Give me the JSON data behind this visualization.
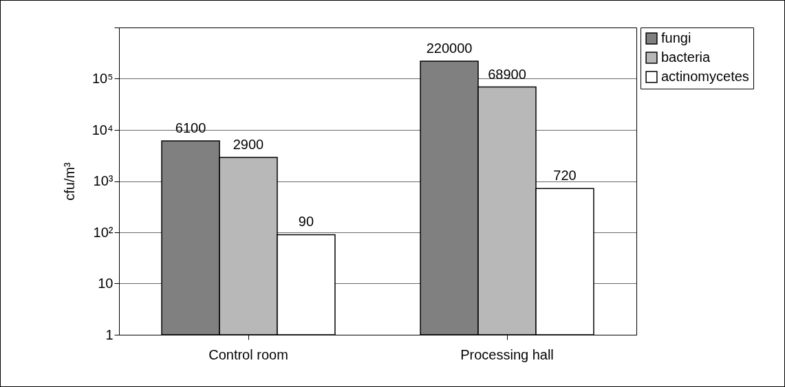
{
  "chart_data": {
    "type": "bar",
    "ylabel": "cfu/m³",
    "categories": [
      "Control room",
      "Processing hall"
    ],
    "series": [
      {
        "name": "fungi",
        "color": "#808080",
        "values": [
          6100,
          220000
        ]
      },
      {
        "name": "bacteria",
        "color": "#b8b8b8",
        "values": [
          2900,
          68900
        ]
      },
      {
        "name": "actinomycetes",
        "color": "#ffffff",
        "values": [
          90,
          720
        ]
      }
    ],
    "log": "y",
    "ylim": [
      1,
      1000000
    ],
    "yticks": [
      1,
      10,
      {
        "value": 100,
        "label": "10²"
      },
      {
        "value": 1000,
        "label": "10³"
      },
      {
        "value": 10000,
        "label": "10⁴"
      },
      {
        "value": 100000,
        "label": "10⁵"
      },
      {
        "value": 1000000,
        "label": null
      }
    ],
    "grid": "y",
    "legend": "top right",
    "data_labels": true
  }
}
